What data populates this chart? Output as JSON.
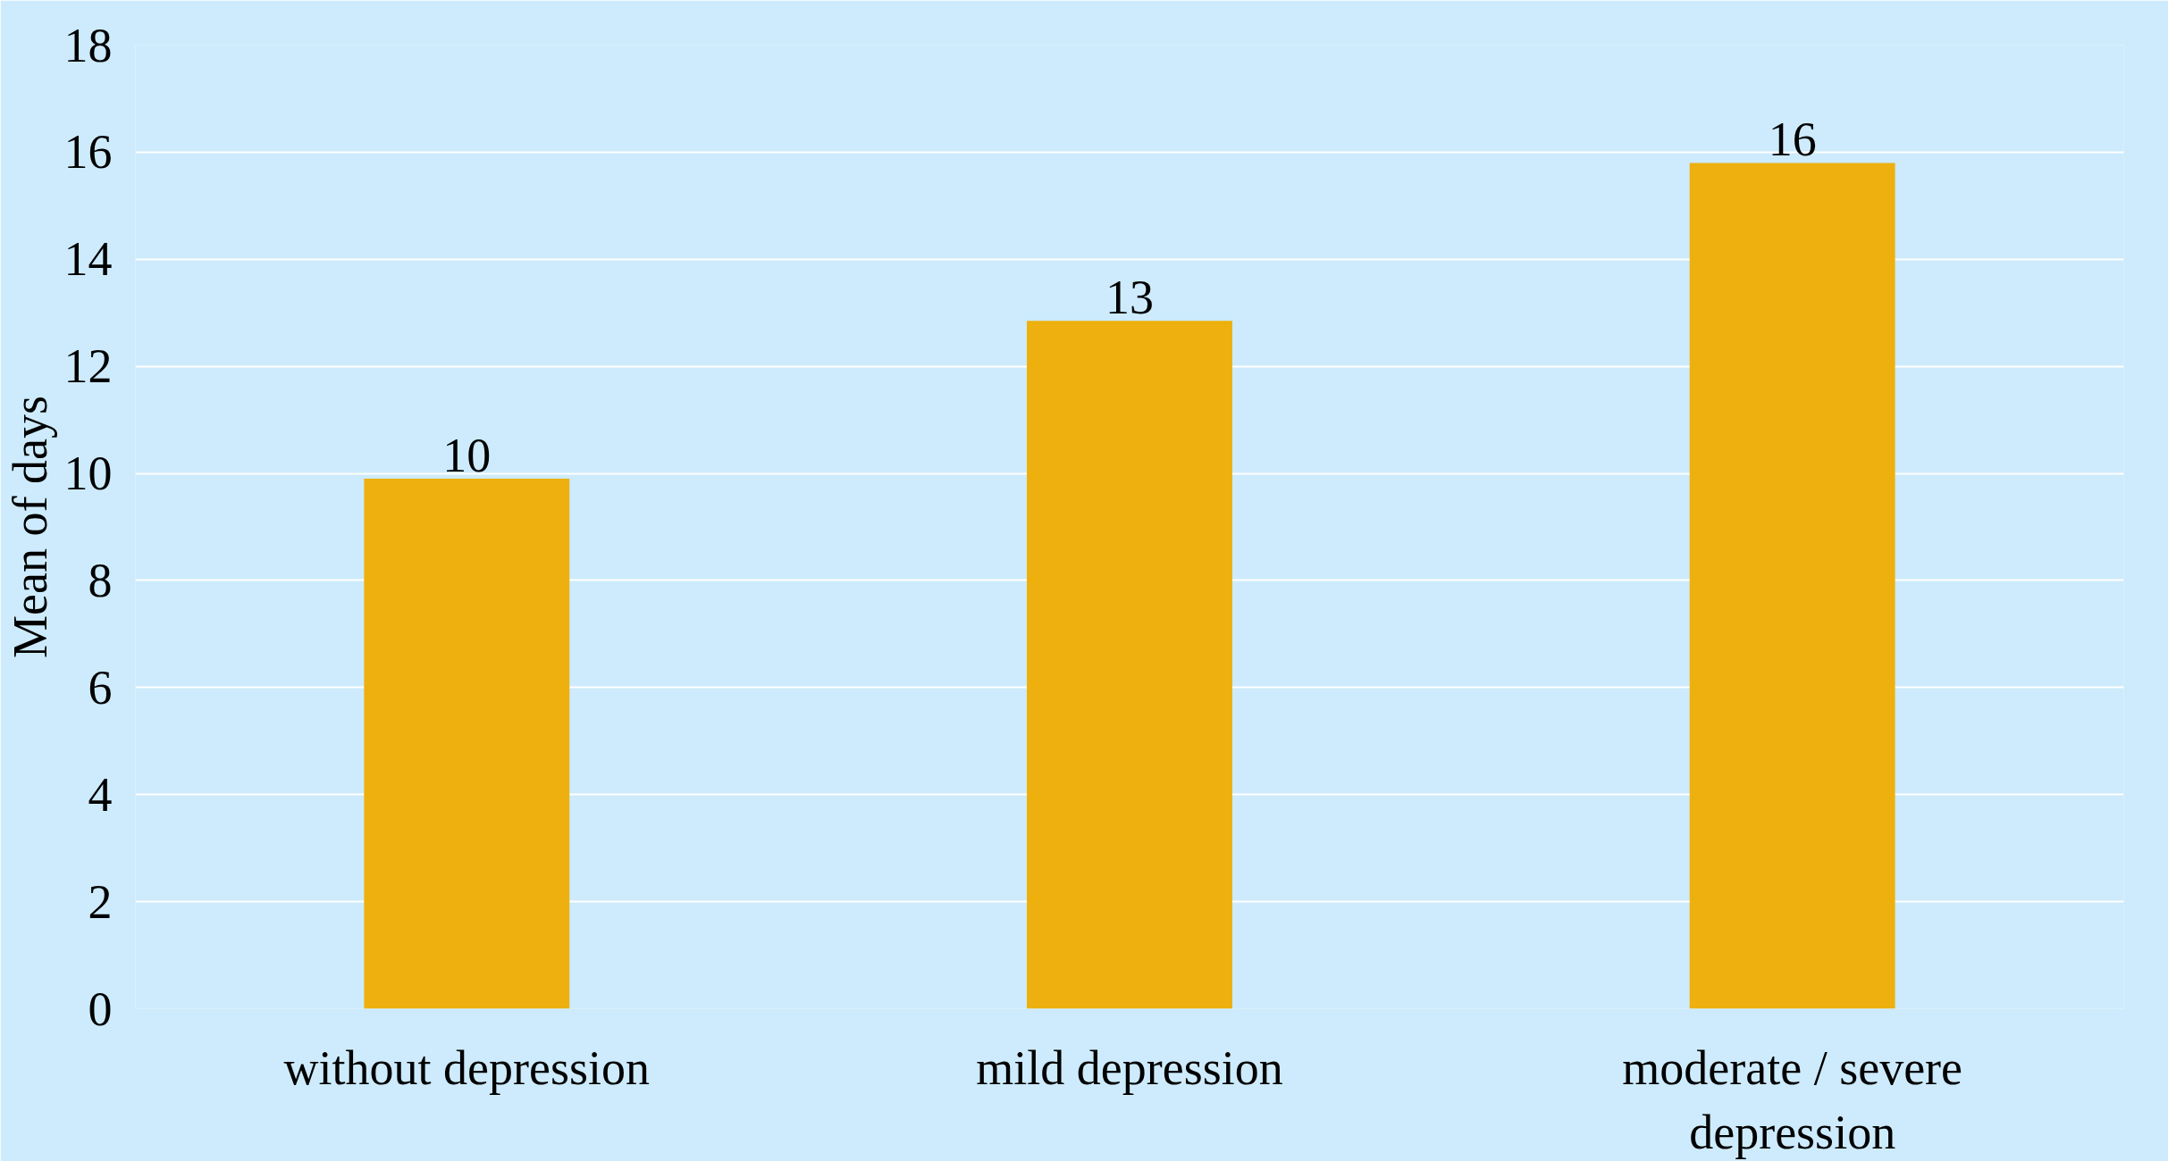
{
  "chart_data": {
    "type": "bar",
    "ylabel": "Mean of days",
    "categories": [
      "without depression",
      "mild depression",
      "moderate / severe\ndepression"
    ],
    "values": [
      9.9,
      12.85,
      15.8
    ],
    "value_labels": [
      "10",
      "13",
      "16"
    ],
    "color": "#edb00e",
    "ylim": [
      0,
      18
    ],
    "yticks": [
      0,
      2,
      4,
      6,
      8,
      10,
      12,
      14,
      16,
      18
    ],
    "grid": "y"
  }
}
